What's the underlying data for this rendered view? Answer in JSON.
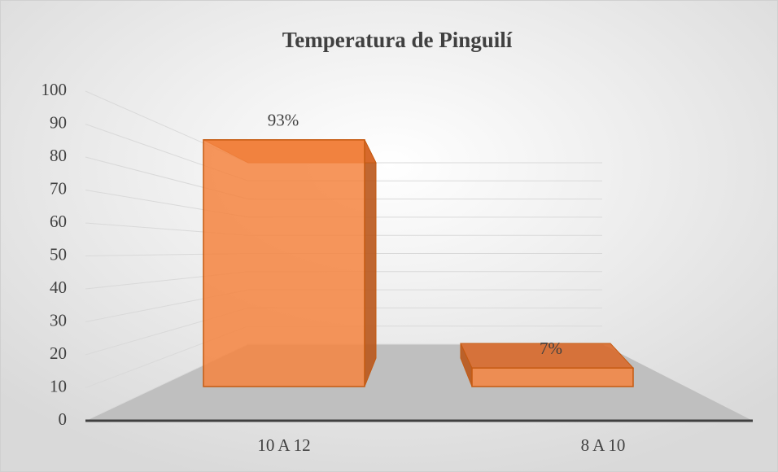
{
  "chart_data": {
    "type": "bar3d",
    "title": "Temperatura de Pinguilí",
    "categories": [
      "10 A 12",
      "8 A 10"
    ],
    "values": [
      93,
      7
    ],
    "value_labels": [
      "93%",
      "7%"
    ],
    "color": "#f4843f",
    "ylim": [
      0,
      100
    ],
    "yticks": [
      0,
      10,
      20,
      30,
      40,
      50,
      60,
      70,
      80,
      90,
      100
    ],
    "grid": true
  }
}
